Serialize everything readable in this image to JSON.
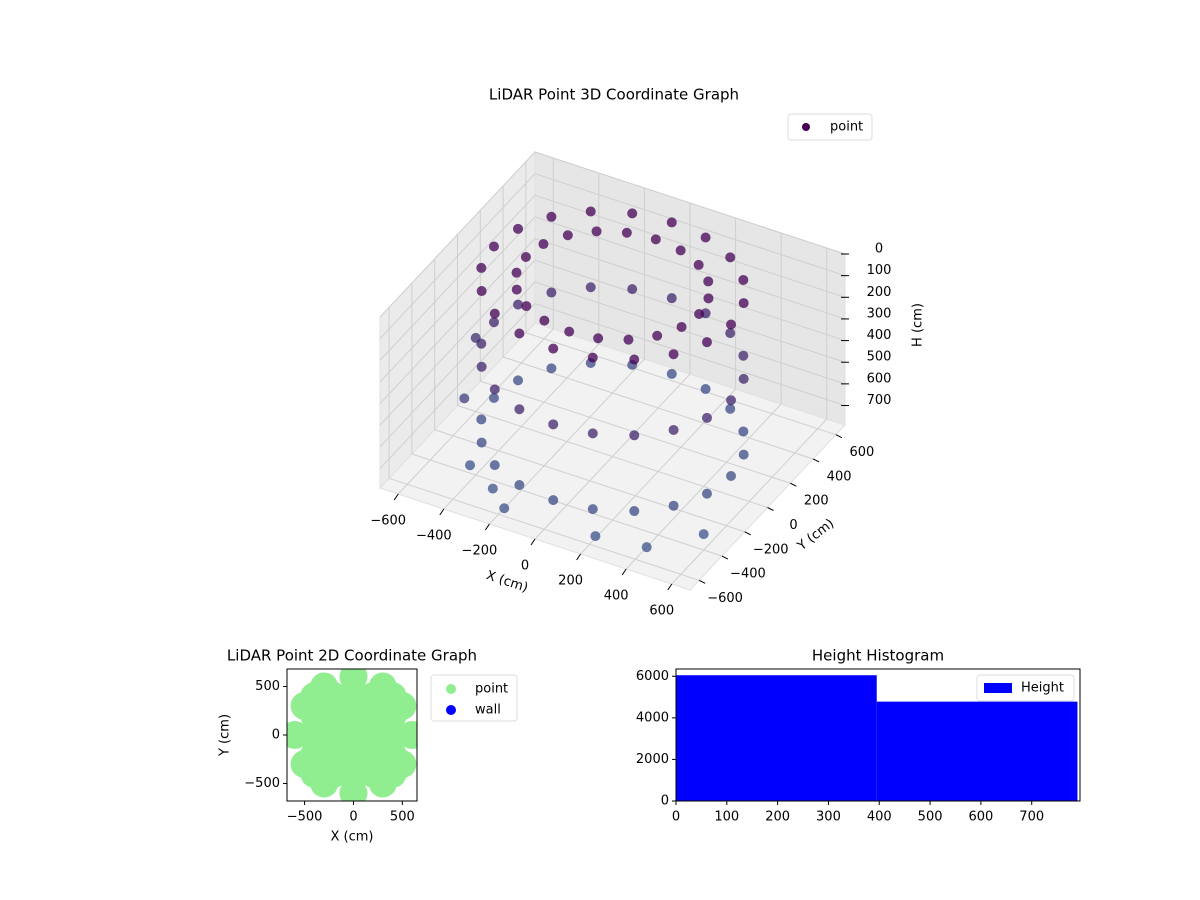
{
  "chart_data": [
    {
      "type": "scatter3d",
      "title": "LiDAR Point 3D Coordinate Graph",
      "x_label": "X (cm)",
      "y_label": "Y (cm)",
      "z_label": "H (cm)",
      "xlim": [
        -680,
        680
      ],
      "ylim": [
        -680,
        680
      ],
      "zlim": [
        0,
        790
      ],
      "z_inverted": true,
      "xticks": [
        {
          "value": -600,
          "label": "−600"
        },
        {
          "value": -400,
          "label": "−400"
        },
        {
          "value": -200,
          "label": "−200"
        },
        0,
        200,
        400,
        600
      ],
      "yticks": [
        {
          "value": -600,
          "label": "−600"
        },
        {
          "value": -400,
          "label": "−400"
        },
        {
          "value": -200,
          "label": "−200"
        },
        0,
        200,
        400,
        600
      ],
      "zticks": [
        0,
        100,
        200,
        300,
        400,
        500,
        600,
        700
      ],
      "grid": true,
      "legend": "upper right",
      "series": [
        {
          "name": "point",
          "color": "#440154",
          "colors": [
            "#440154",
            "#3b528b"
          ],
          "x": [
            520,
            495,
            421,
            306,
            161,
            0,
            -161,
            -306,
            -421,
            -495,
            -520,
            -495,
            -421,
            -306,
            -161,
            0,
            161,
            306,
            421,
            495,
            520,
            495,
            421,
            306,
            161,
            0,
            -161,
            -306,
            -421,
            -495,
            -520,
            -495,
            -421,
            -306,
            -161,
            0,
            161,
            306,
            421,
            495,
            520,
            495,
            421,
            306,
            161,
            0,
            -161,
            -306,
            -421,
            -495,
            -520,
            -495,
            -421,
            -306,
            -161,
            0,
            161,
            306,
            421,
            495,
            380,
            362,
            308,
            224,
            118,
            0,
            -118,
            -224,
            -308,
            -362,
            -380,
            -362,
            -308,
            -224,
            -118,
            0,
            118,
            224,
            308,
            362,
            -450,
            -300,
            -200,
            200,
            400,
            550,
            -550,
            -600
          ],
          "y": [
            0,
            161,
            306,
            421,
            495,
            520,
            495,
            421,
            306,
            161,
            0,
            -161,
            -306,
            -421,
            -495,
            -520,
            -495,
            -421,
            -306,
            -161,
            0,
            161,
            306,
            421,
            495,
            520,
            495,
            421,
            306,
            161,
            0,
            -161,
            -306,
            -421,
            -495,
            -520,
            -495,
            -421,
            -306,
            -161,
            0,
            161,
            306,
            421,
            495,
            520,
            495,
            421,
            306,
            161,
            0,
            -161,
            -306,
            -421,
            -495,
            -520,
            -495,
            -421,
            -306,
            -161,
            0,
            118,
            224,
            308,
            362,
            380,
            362,
            308,
            224,
            118,
            0,
            -118,
            -224,
            -308,
            -362,
            -380,
            -362,
            -308,
            -224,
            -118,
            -350,
            -450,
            -550,
            -550,
            -500,
            -300,
            -200,
            0
          ],
          "z": [
            0,
            0,
            0,
            0,
            0,
            0,
            0,
            0,
            0,
            0,
            0,
            0,
            0,
            0,
            0,
            0,
            0,
            0,
            0,
            0,
            350,
            350,
            350,
            350,
            350,
            350,
            350,
            350,
            350,
            350,
            350,
            350,
            350,
            350,
            350,
            350,
            350,
            350,
            350,
            350,
            700,
            700,
            700,
            700,
            700,
            700,
            700,
            700,
            700,
            700,
            700,
            700,
            700,
            700,
            700,
            700,
            700,
            700,
            700,
            700,
            0,
            0,
            0,
            0,
            0,
            0,
            0,
            0,
            0,
            0,
            0,
            0,
            0,
            0,
            0,
            0,
            0,
            0,
            0,
            0,
            790,
            790,
            790,
            780,
            790,
            790,
            600,
            450
          ]
        }
      ]
    },
    {
      "type": "scatter",
      "title": "LiDAR Point 2D Coordinate Graph",
      "x_label": "X (cm)",
      "y_label": "Y (cm)",
      "xlim": [
        -680,
        650
      ],
      "ylim": [
        -680,
        680
      ],
      "xticks": [
        {
          "value": -500,
          "label": "−500"
        },
        0,
        500
      ],
      "yticks": [
        {
          "value": -500,
          "label": "−500"
        },
        0,
        500
      ],
      "legend": "outside right",
      "series": [
        {
          "name": "point",
          "color": "#90ee90",
          "x": [
            0,
            0,
            0,
            0,
            0,
            0,
            0,
            200,
            200,
            200,
            200,
            200,
            -200,
            -200,
            -200,
            -200,
            -200,
            400,
            400,
            400,
            400,
            400,
            -400,
            -400,
            -400,
            -400,
            -400,
            600,
            -600,
            500,
            500,
            -500,
            -500,
            300,
            300,
            -300,
            -300
          ],
          "y": [
            -600,
            -400,
            -200,
            0,
            200,
            400,
            600,
            -400,
            -200,
            0,
            200,
            400,
            -400,
            -200,
            0,
            200,
            400,
            -400,
            -200,
            0,
            200,
            400,
            -400,
            -200,
            0,
            200,
            400,
            0,
            0,
            300,
            -300,
            300,
            -300,
            500,
            -500,
            500,
            -500
          ]
        },
        {
          "name": "wall",
          "color": "#0000ff",
          "x": [],
          "y": []
        }
      ]
    },
    {
      "type": "histogram",
      "title": "Height Histogram",
      "bins": [
        0,
        395,
        790
      ],
      "xlim": [
        0,
        795
      ],
      "ylim": [
        0,
        6350
      ],
      "xticks": [
        0,
        100,
        200,
        300,
        400,
        500,
        600,
        700
      ],
      "yticks": [
        0,
        2000,
        4000,
        6000
      ],
      "legend": "upper right",
      "series": [
        {
          "name": "Height",
          "color": "#0000ff",
          "values": [
            6050,
            4780
          ]
        }
      ]
    }
  ]
}
